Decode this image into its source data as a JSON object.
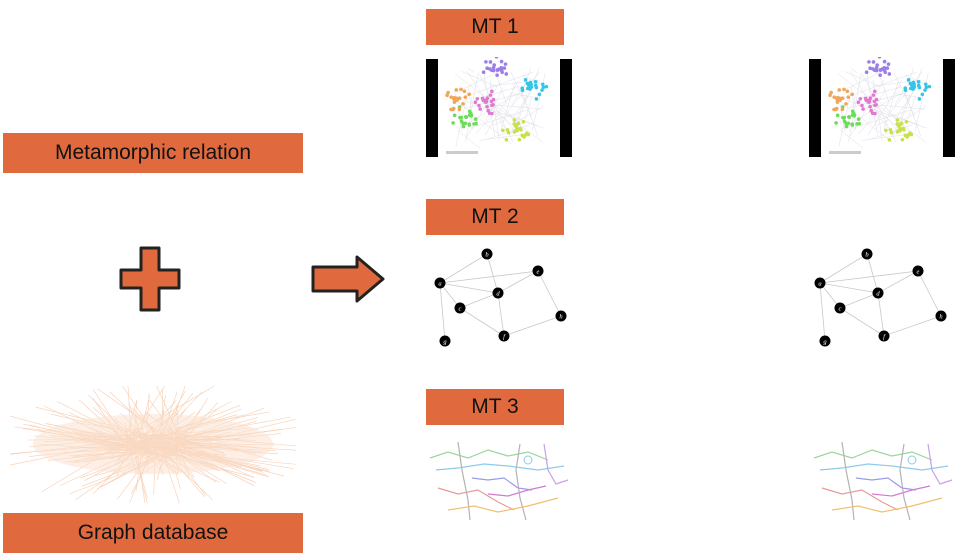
{
  "left": {
    "relation_label": "Metamorphic relation",
    "database_label": "Graph database"
  },
  "tests": [
    {
      "label": "MT 1"
    },
    {
      "label": "MT 2"
    },
    {
      "label": "MT 3"
    }
  ],
  "graph_nodes": [
    "a",
    "b",
    "c",
    "d",
    "e",
    "f",
    "g",
    "h"
  ],
  "colors": {
    "accent": "#e06a3e",
    "outline": "#222222",
    "node": "#000000"
  },
  "icons": {
    "plus": "plus-icon",
    "arrow": "right-arrow-icon"
  }
}
